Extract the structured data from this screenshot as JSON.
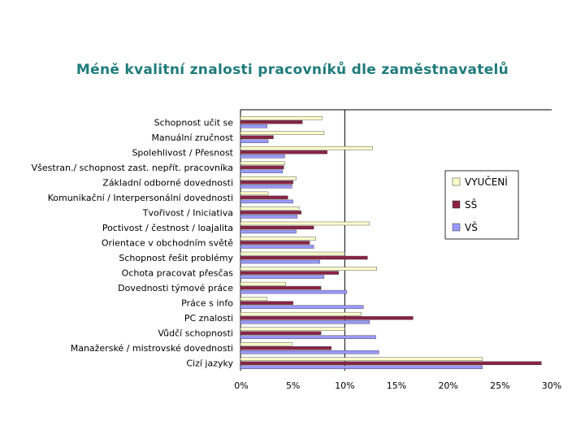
{
  "title": "Méně kvalitní znalosti pracovníků dle zaměstnavatelů",
  "colors": {
    "title": "#1f7b7b",
    "VYUČENÍ": "#ffffcc",
    "SŠ": "#8b2346",
    "VŠ": "#9999ff"
  },
  "chart_data": {
    "type": "bar",
    "orientation": "horizontal",
    "title": "Méně kvalitní znalosti pracovníků dle zaměstnavatelů",
    "categories": [
      "Schopnost učit se",
      "Manuální zručnost",
      "Spolehlivost / Přesnost",
      "Všestran./ schopnost zast. nepřít. pracovníka",
      "Základní odborné dovednosti",
      "Komunikační / Interpersonální dovednosti",
      "Tvořivost / Iniciativa",
      "Poctivost / čestnost / loajalita",
      "Orientace v obchodním světě",
      "Schopnost řešit problémy",
      "Ochota pracovat přesčas",
      "Dovednosti týmové práce",
      "Práce s info",
      "PC znalosti",
      "Vůdčí schopnosti",
      "Manažerské / mistrovské dovednosti",
      "Cizí jazyky"
    ],
    "series": [
      {
        "name": "VYUČENÍ",
        "values": [
          7.8,
          8.0,
          12.7,
          4.2,
          5.3,
          2.6,
          5.6,
          12.4,
          7.2,
          10.0,
          13.1,
          4.3,
          2.5,
          11.6,
          10.0,
          4.9,
          23.3
        ]
      },
      {
        "name": "SŠ",
        "values": [
          5.9,
          3.1,
          8.3,
          4.1,
          5.0,
          4.5,
          5.8,
          7.0,
          6.6,
          12.2,
          9.4,
          7.7,
          5.0,
          16.6,
          7.7,
          8.7,
          29.0
        ]
      },
      {
        "name": "VŠ",
        "values": [
          2.5,
          2.6,
          4.2,
          4.0,
          4.9,
          5.0,
          5.4,
          5.3,
          7.0,
          7.6,
          8.0,
          10.2,
          11.8,
          12.4,
          13.0,
          13.3,
          23.3
        ]
      }
    ],
    "xlim": [
      0,
      30
    ],
    "xticks": [
      "0%",
      "5%",
      "10%",
      "15%",
      "20%",
      "25%",
      "30%"
    ],
    "legend": [
      "VYUČENÍ",
      "SŠ",
      "VŠ"
    ],
    "legend_position": "right",
    "grid": false
  }
}
